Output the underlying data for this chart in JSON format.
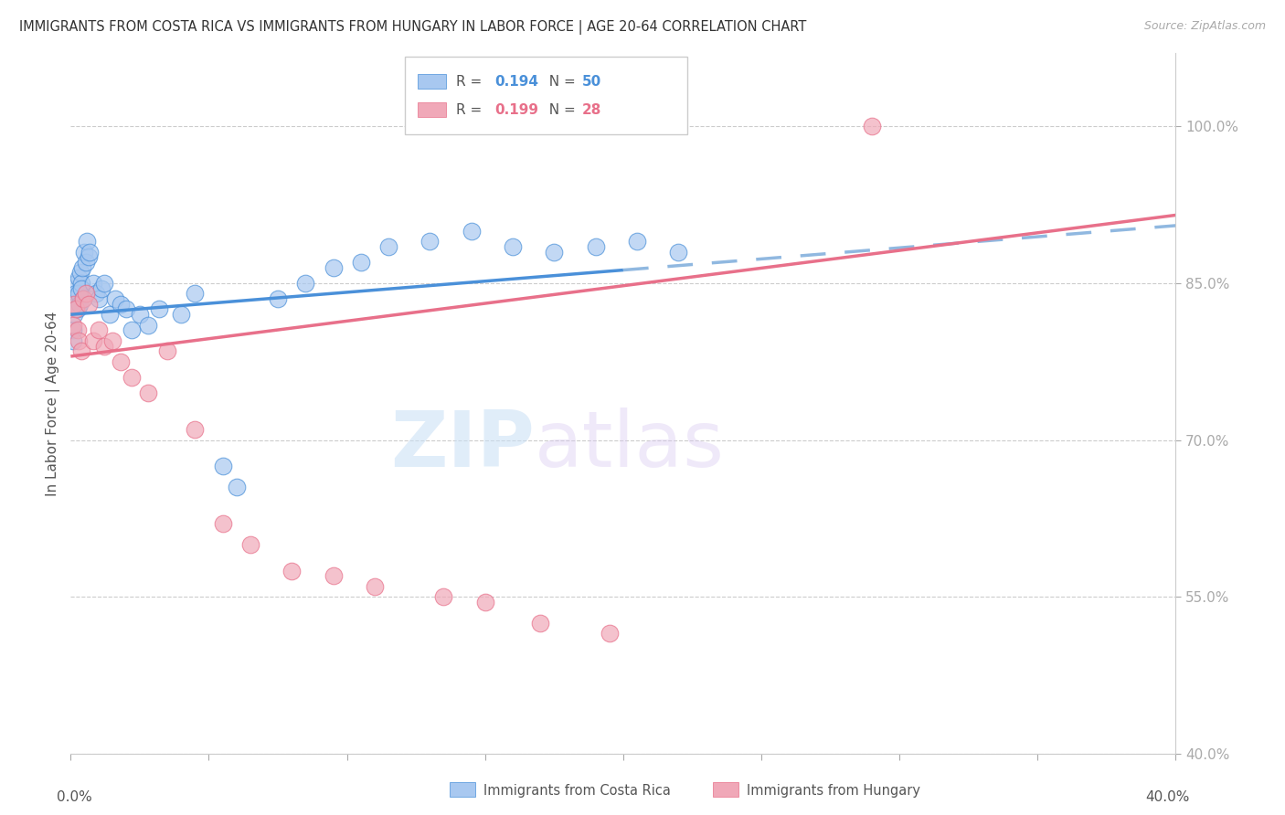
{
  "title": "IMMIGRANTS FROM COSTA RICA VS IMMIGRANTS FROM HUNGARY IN LABOR FORCE | AGE 20-64 CORRELATION CHART",
  "source": "Source: ZipAtlas.com",
  "ylabel_ticks": [
    40.0,
    55.0,
    70.0,
    85.0,
    100.0
  ],
  "ylabel_labels": [
    "40.0%",
    "55.0%",
    "70.0%",
    "85.0%",
    "100.0%"
  ],
  "legend_R1": "0.194",
  "legend_N1": "50",
  "legend_R2": "0.199",
  "legend_N2": "28",
  "watermark_zip": "ZIP",
  "watermark_atlas": "atlas",
  "costa_rica_color": "#a8c8f0",
  "hungary_color": "#f0a8b8",
  "line_costa_rica_color": "#4a90d9",
  "line_hungary_color": "#e8708a",
  "line_dashed_color": "#90b8e0",
  "cr_line_x": [
    0.0,
    40.0
  ],
  "cr_line_y": [
    82.0,
    90.5
  ],
  "cr_solid_end_x": 20.0,
  "hu_line_x": [
    0.0,
    40.0
  ],
  "hu_line_y": [
    78.0,
    91.5
  ],
  "xmin": 0.0,
  "xmax": 40.0,
  "ymin": 40.0,
  "ymax": 107.0,
  "cr_x": [
    0.08,
    0.1,
    0.12,
    0.15,
    0.18,
    0.2,
    0.22,
    0.25,
    0.28,
    0.3,
    0.32,
    0.35,
    0.38,
    0.4,
    0.42,
    0.45,
    0.5,
    0.55,
    0.6,
    0.65,
    0.7,
    0.8,
    0.9,
    1.0,
    1.1,
    1.2,
    1.4,
    1.6,
    1.8,
    2.0,
    2.2,
    2.5,
    2.8,
    3.2,
    4.0,
    4.5,
    5.5,
    6.0,
    7.5,
    8.5,
    9.5,
    10.5,
    11.5,
    13.0,
    14.5,
    16.0,
    17.5,
    19.0,
    20.5,
    22.0
  ],
  "cr_y": [
    80.5,
    79.5,
    82.0,
    83.5,
    85.0,
    84.0,
    83.0,
    82.5,
    85.5,
    84.0,
    83.0,
    86.0,
    85.0,
    84.5,
    86.5,
    83.5,
    88.0,
    87.0,
    89.0,
    87.5,
    88.0,
    85.0,
    84.0,
    83.5,
    84.5,
    85.0,
    82.0,
    83.5,
    83.0,
    82.5,
    80.5,
    82.0,
    81.0,
    82.5,
    82.0,
    84.0,
    67.5,
    65.5,
    83.5,
    85.0,
    86.5,
    87.0,
    88.5,
    89.0,
    90.0,
    88.5,
    88.0,
    88.5,
    89.0,
    88.0
  ],
  "hu_x": [
    0.08,
    0.12,
    0.18,
    0.25,
    0.3,
    0.38,
    0.45,
    0.55,
    0.65,
    0.8,
    1.0,
    1.2,
    1.5,
    1.8,
    2.2,
    2.8,
    3.5,
    4.5,
    5.5,
    6.5,
    8.0,
    9.5,
    11.0,
    13.5,
    15.0,
    17.0,
    19.5,
    29.0
  ],
  "hu_y": [
    81.0,
    83.0,
    82.5,
    80.5,
    79.5,
    78.5,
    83.5,
    84.0,
    83.0,
    79.5,
    80.5,
    79.0,
    79.5,
    77.5,
    76.0,
    74.5,
    78.5,
    71.0,
    62.0,
    60.0,
    57.5,
    57.0,
    56.0,
    55.0,
    54.5,
    52.5,
    51.5,
    100.0
  ]
}
